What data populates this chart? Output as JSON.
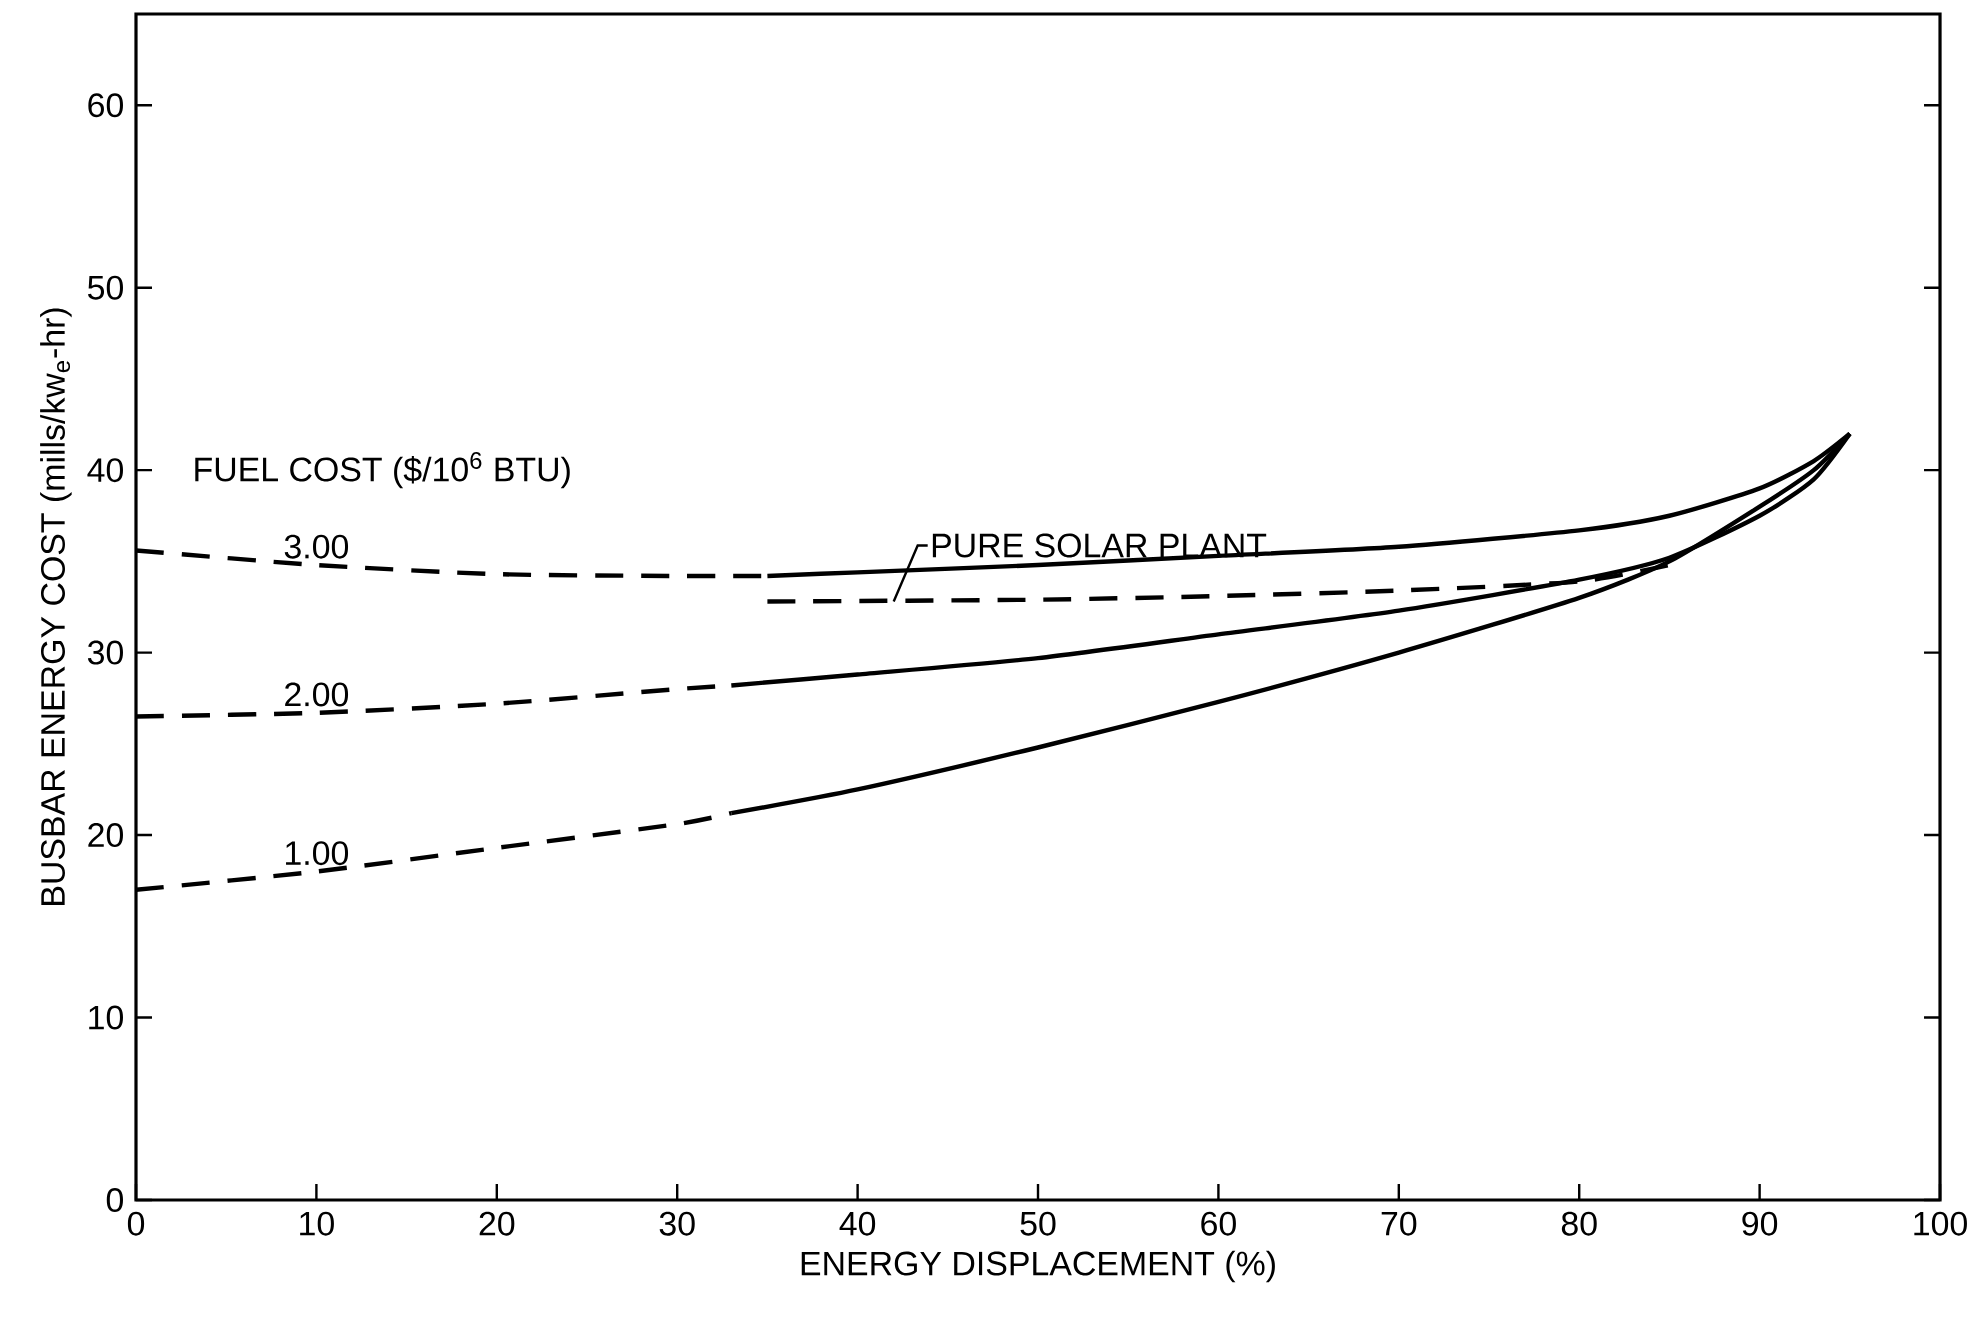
{
  "chart_data": {
    "type": "line",
    "xlabel": "ENERGY DISPLACEMENT (%)",
    "ylabel": "BUSBAR ENERGY COST (mills/kw$_{e}$-hr)",
    "legend_title": "FUEL COST ($/10$^{6}$ BTU)",
    "xlim": [
      0,
      100
    ],
    "ylim": [
      0,
      65
    ],
    "xticks": [
      0,
      10,
      20,
      30,
      40,
      50,
      60,
      70,
      80,
      90,
      100
    ],
    "yticks": [
      0,
      10,
      20,
      30,
      40,
      50,
      60
    ],
    "grid": false,
    "legend": false,
    "marker": "none",
    "series": [
      {
        "name": "3.00",
        "color": "#000000",
        "line_style": "dashed",
        "x": [
          0,
          10,
          20,
          30,
          35
        ],
        "values": [
          35.6,
          34.8,
          34.3,
          34.2,
          34.2
        ]
      },
      {
        "color": "#000000",
        "line_style": "solid",
        "x": [
          35,
          40,
          50,
          60,
          70,
          80,
          85,
          90,
          93,
          95
        ],
        "values": [
          34.2,
          34.4,
          34.8,
          35.3,
          35.8,
          36.7,
          37.5,
          39,
          40.5,
          42
        ]
      },
      {
        "name": "2.00",
        "color": "#000000",
        "line_style": "dashed",
        "x": [
          0,
          10,
          20,
          30,
          33
        ],
        "values": [
          26.5,
          26.7,
          27.2,
          28,
          28.2
        ]
      },
      {
        "color": "#000000",
        "line_style": "solid",
        "x": [
          33,
          40,
          50,
          60,
          70,
          80,
          85,
          90,
          93,
          95
        ],
        "values": [
          28.2,
          28.8,
          29.7,
          31,
          32.3,
          34,
          35.2,
          37.5,
          39.5,
          42
        ]
      },
      {
        "name": "1.00",
        "color": "#000000",
        "line_style": "dashed",
        "x": [
          0,
          10,
          20,
          30,
          33
        ],
        "values": [
          17,
          18,
          19.3,
          20.6,
          21.2
        ]
      },
      {
        "color": "#000000",
        "line_style": "solid",
        "x": [
          33,
          40,
          50,
          60,
          70,
          80,
          85,
          90,
          93,
          95
        ],
        "values": [
          21.2,
          22.5,
          24.8,
          27.3,
          30,
          33,
          35,
          38,
          40,
          42
        ]
      },
      {
        "color": "#000000",
        "line_style": "dashed",
        "x": [
          35,
          50,
          60,
          70,
          80,
          85
        ],
        "values": [
          32.8,
          32.9,
          33.1,
          33.4,
          33.9,
          34.8
        ]
      }
    ],
    "annotations": [
      {
        "text": "PURE SOLAR PLANT",
        "x": 42,
        "y": 32.8
      }
    ]
  }
}
